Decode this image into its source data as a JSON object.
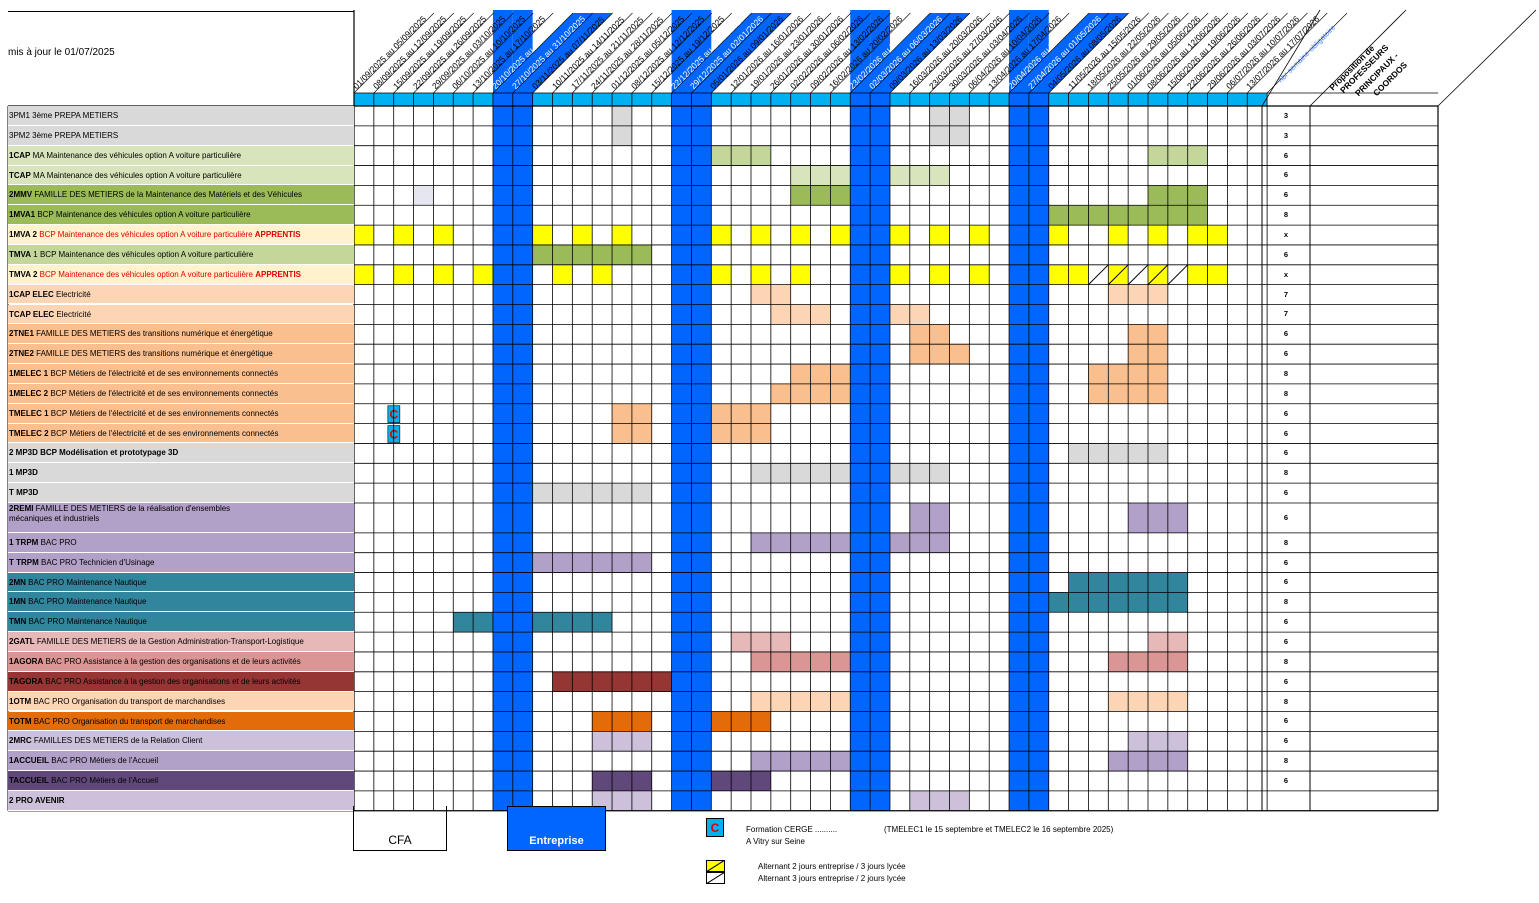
{
  "updated": "mis à jour le 01/07/2025",
  "headers": {
    "weeks_label": "nbr semaine obligatoire",
    "proposition": "Proposition de",
    "profs": "PROFESSEURS",
    "principaux": "PRINCIPAUX -",
    "coordos": "COORDOS"
  },
  "weeks": [
    {
      "label": "01/09/2025 au 05/09/2025",
      "hl": false
    },
    {
      "label": "08/09/2025 au 12/09/2025",
      "hl": false
    },
    {
      "label": "15/09/2025 au 19/09/2025",
      "hl": false
    },
    {
      "label": "22/09/2025 au 26/09/2025",
      "hl": false
    },
    {
      "label": "29/09/2025 au 03/10/2025",
      "hl": false
    },
    {
      "label": "06/10/2025 au 10/10/2025",
      "hl": false
    },
    {
      "label": "13/10/2025 au 17/10/2025",
      "hl": false
    },
    {
      "label": "20/10/2025 au 24/10/2025",
      "hl": true
    },
    {
      "label": "27/10/2025 au 31/10/2025",
      "hl": true
    },
    {
      "label": "03/11/2025 au 07/11/2025",
      "hl": false
    },
    {
      "label": "10/11/2025 au 14/11/2025",
      "hl": false
    },
    {
      "label": "17/11/2025 au 21/11/2025",
      "hl": false
    },
    {
      "label": "24/11/2025 au 28/11/2025",
      "hl": false
    },
    {
      "label": "01/12/2025 au 05/12/2025",
      "hl": false
    },
    {
      "label": "08/12/2025 au 12/12/2025",
      "hl": false
    },
    {
      "label": "15/12/2025 au 19/12/2025",
      "hl": false
    },
    {
      "label": "22/12/2025 au 26/12/2025",
      "hl": true
    },
    {
      "label": "29/12/2025 au 02/01/2026",
      "hl": true
    },
    {
      "label": "05/01/2026 au 09/01/2026",
      "hl": false
    },
    {
      "label": "12/01/2026 au 16/01/2026",
      "hl": false
    },
    {
      "label": "19/01/2026 au 23/01/2026",
      "hl": false
    },
    {
      "label": "26/01/2026 au 30/01/2026",
      "hl": false
    },
    {
      "label": "02/02/2026 au 06/02/2026",
      "hl": false
    },
    {
      "label": "09/02/2026 au 13/02/2026",
      "hl": false
    },
    {
      "label": "16/02/2026 au 20/02/2026",
      "hl": false
    },
    {
      "label": "23/02/2026 au 27/02/2026",
      "hl": true
    },
    {
      "label": "02/03/2026 au 06/03/2026",
      "hl": true
    },
    {
      "label": "09/03/2026 au 13/03/2026",
      "hl": false
    },
    {
      "label": "16/03/2026 au 20/03/2026",
      "hl": false
    },
    {
      "label": "23/03/2026 au 27/03/2026",
      "hl": false
    },
    {
      "label": "30/03/2026 au 03/04/2026",
      "hl": false
    },
    {
      "label": "06/04/2026 au 10/04/2026",
      "hl": false
    },
    {
      "label": "13/04/2026 au 17/04/2026",
      "hl": false
    },
    {
      "label": "20/04/2026 au 24/04/2026",
      "hl": true
    },
    {
      "label": "27/04/2026 au 01/05/2026",
      "hl": true
    },
    {
      "label": "04/05/2026 au 08/05/2026",
      "hl": false
    },
    {
      "label": "11/05/2026 au 15/05/2026",
      "hl": false
    },
    {
      "label": "18/05/2026 au 22/05/2026",
      "hl": false
    },
    {
      "label": "25/05/2026 au 29/05/2026",
      "hl": false
    },
    {
      "label": "01/06/2026 au 05/06/2026",
      "hl": false
    },
    {
      "label": "08/06/2026 au 12/06/2026",
      "hl": false
    },
    {
      "label": "15/06/2026 au 19/06/2026",
      "hl": false
    },
    {
      "label": "22/06/2026 au 26/06/2026",
      "hl": false
    },
    {
      "label": "29/06/2026 au 03/07/2026",
      "hl": false
    },
    {
      "label": "06/07/2026 au 10/07/2026",
      "hl": false
    },
    {
      "label": "13/07/2026 au 17/07/2026",
      "hl": false
    }
  ],
  "holiday_cols": [
    7,
    8,
    16,
    17,
    25,
    26,
    33,
    34
  ],
  "colors": {
    "holiday": "#0066ff",
    "header_strip": "#00b0f0",
    "yellow": "#ffff00",
    "cerge": "#00b0f0",
    "cerge_text": "#e00000"
  },
  "rows": [
    {
      "code": "3PM1",
      "text": " 3ème PREPA METIERS",
      "bg": "#d9d9d9",
      "count": "3",
      "codeBold": false,
      "fills": [
        [
          13,
          13,
          "#d9d9d9"
        ],
        [
          29,
          30,
          "#d9d9d9"
        ]
      ]
    },
    {
      "code": "3PM2",
      "text": " 3ème PREPA METIERS",
      "bg": "#d9d9d9",
      "count": "3",
      "codeBold": false,
      "fills": [
        [
          13,
          13,
          "#d9d9d9"
        ],
        [
          29,
          30,
          "#d9d9d9"
        ]
      ]
    },
    {
      "code": "1CAP",
      "text": " MA   Maintenance des véhicules option A voiture particulière",
      "bg": "#d8e4bc",
      "count": "6",
      "fills": [
        [
          18,
          20,
          "#c4d79b"
        ],
        [
          40,
          42,
          "#c4d79b"
        ]
      ]
    },
    {
      "code": "TCAP",
      "text": " MA   Maintenance des véhicules option A voiture particulière",
      "bg": "#d8e4bc",
      "count": "6",
      "fills": [
        [
          22,
          24,
          "#d8e4bc"
        ],
        [
          27,
          29,
          "#d8e4bc"
        ]
      ]
    },
    {
      "code": "2MMV",
      "text": " FAMILLE DES METIERS  de la Maintenance des Matériels et des Véhicules",
      "bg": "#9bbb59",
      "count": "6",
      "fills": [
        [
          3,
          3,
          "#e6e6f0"
        ],
        [
          22,
          24,
          "#9bbb59"
        ],
        [
          40,
          42,
          "#9bbb59"
        ]
      ]
    },
    {
      "code": "1MVA1",
      "text": "  BCP Maintenance des véhicules option A voiture particulière",
      "bg": "#9bbb59",
      "count": "8",
      "fills": [
        [
          35,
          42,
          "#9bbb59"
        ]
      ]
    },
    {
      "code": "1MVA 2",
      "text": "  BCP Maintenance des véhicules option A voiture particulière ",
      "red": "APPRENTIS",
      "bg": "#fff2cc",
      "redText": true,
      "count": "x",
      "fills": [
        [
          0,
          0,
          "#ffff00"
        ],
        [
          2,
          2,
          "#ffff00"
        ],
        [
          4,
          4,
          "#ffff00"
        ],
        [
          9,
          9,
          "#ffff00"
        ],
        [
          11,
          11,
          "#ffff00"
        ],
        [
          13,
          13,
          "#ffff00"
        ],
        [
          18,
          18,
          "#ffff00"
        ],
        [
          20,
          20,
          "#ffff00"
        ],
        [
          22,
          22,
          "#ffff00"
        ],
        [
          24,
          24,
          "#ffff00"
        ],
        [
          27,
          27,
          "#ffff00"
        ],
        [
          29,
          29,
          "#ffff00"
        ],
        [
          31,
          31,
          "#ffff00"
        ],
        [
          35,
          35,
          "#ffff00"
        ],
        [
          38,
          38,
          "#ffff00"
        ],
        [
          40,
          40,
          "#ffff00"
        ],
        [
          42,
          43,
          "#ffff00"
        ]
      ]
    },
    {
      "code": "TMVA",
      "text": " 1 BCP Maintenance des véhicules option A voiture particulière",
      "bg": "#c4d79b",
      "count": "6",
      "fills": [
        [
          9,
          14,
          "#9bbb59"
        ]
      ]
    },
    {
      "code": "TMVA 2",
      "text": " BCP Maintenance des véhicules option A voiture particulière ",
      "red": "APPRENTIS",
      "bg": "#fff2cc",
      "redText": true,
      "count": "x",
      "fills": [
        [
          0,
          0,
          "#ffff00"
        ],
        [
          2,
          2,
          "#ffff00"
        ],
        [
          4,
          4,
          "#ffff00"
        ],
        [
          6,
          6,
          "#ffff00"
        ],
        [
          10,
          10,
          "#ffff00"
        ],
        [
          12,
          12,
          "#ffff00"
        ],
        [
          18,
          18,
          "#ffff00"
        ],
        [
          20,
          20,
          "#ffff00"
        ],
        [
          22,
          22,
          "#ffff00"
        ],
        [
          27,
          27,
          "#ffff00"
        ],
        [
          29,
          29,
          "#ffff00"
        ],
        [
          31,
          31,
          "#ffff00"
        ],
        [
          35,
          36,
          "#ffff00"
        ],
        [
          42,
          43,
          "#ffff00"
        ]
      ],
      "hatch": [
        37,
        38,
        39,
        40,
        41
      ]
    },
    {
      "code": "1CAP ELEC",
      "text": " Electricité",
      "bg": "#fcd5b4",
      "count": "7",
      "fills": [
        [
          20,
          21,
          "#fcd5b4"
        ],
        [
          38,
          40,
          "#fcd5b4"
        ]
      ]
    },
    {
      "code": "TCAP ELEC",
      "text": " Electricité",
      "bg": "#fcd5b4",
      "count": "7",
      "fills": [
        [
          21,
          23,
          "#fcd5b4"
        ],
        [
          27,
          28,
          "#fcd5b4"
        ]
      ]
    },
    {
      "code": "2TNE1",
      "text": " FAMILLE DES METIERS des transitions numérique et énergétique",
      "bg": "#fabf8f",
      "count": "6",
      "fills": [
        [
          28,
          29,
          "#fabf8f"
        ],
        [
          39,
          40,
          "#fabf8f"
        ]
      ]
    },
    {
      "code": "2TNE2",
      "text": "  FAMILLE DES METIERS des transitions numérique et énergétique",
      "bg": "#fabf8f",
      "count": "6",
      "fills": [
        [
          28,
          30,
          "#fabf8f"
        ],
        [
          39,
          40,
          "#fabf8f"
        ]
      ]
    },
    {
      "code": "1MELEC 1",
      "text": "  BCP Métiers de l'électricité et de ses environnements connectés",
      "bg": "#fabf8f",
      "count": "8",
      "fills": [
        [
          22,
          24,
          "#fabf8f"
        ],
        [
          37,
          40,
          "#fabf8f"
        ]
      ]
    },
    {
      "code": "1MELEC 2",
      "text": "  BCP Métiers de l'électricité et de ses environnements connectés",
      "bg": "#fabf8f",
      "count": "8",
      "fills": [
        [
          21,
          24,
          "#fabf8f"
        ],
        [
          37,
          40,
          "#fabf8f"
        ]
      ]
    },
    {
      "code": "TMELEC 1",
      "text": "  BCP Métiers de l'électricité et de ses environnements connectés",
      "bg": "#fabf8f",
      "count": "6",
      "cerge": true,
      "fills": [
        [
          13,
          14,
          "#fabf8f"
        ],
        [
          18,
          20,
          "#fabf8f"
        ]
      ]
    },
    {
      "code": "TMELEC 2",
      "text": "  BCP Métiers de l'électricité et de ses environnements connectés",
      "bg": "#fabf8f",
      "count": "6",
      "cerge": true,
      "fills": [
        [
          13,
          14,
          "#fabf8f"
        ],
        [
          18,
          20,
          "#fabf8f"
        ]
      ]
    },
    {
      "code": "2 MP3D",
      "text": " BCP Modélisation et prototypage 3D",
      "bg": "#d9d9d9",
      "count": "6",
      "allBold": true,
      "fills": [
        [
          36,
          40,
          "#d9d9d9"
        ]
      ]
    },
    {
      "code": "1 MP3D",
      "text": "",
      "bg": "#d9d9d9",
      "count": "8",
      "fills": [
        [
          20,
          24,
          "#d9d9d9"
        ],
        [
          27,
          29,
          "#d9d9d9"
        ]
      ]
    },
    {
      "code": "T MP3D",
      "text": "",
      "bg": "#d9d9d9",
      "count": "6",
      "fills": [
        [
          9,
          14,
          "#d9d9d9"
        ]
      ]
    },
    {
      "code": "2REMI",
      "text": " FAMILLE DES METIERS de la réalisation d'ensembles",
      "text2": "mécaniques et industriels",
      "bg": "#b1a0c7",
      "count": "6",
      "fills": [
        [
          28,
          29,
          "#b1a0c7"
        ],
        [
          39,
          41,
          "#b1a0c7"
        ]
      ]
    },
    {
      "code": "1 TRPM",
      "text": "  BAC PRO",
      "bg": "#b1a0c7",
      "count": "8",
      "fills": [
        [
          20,
          24,
          "#b1a0c7"
        ],
        [
          27,
          29,
          "#b1a0c7"
        ]
      ]
    },
    {
      "code": "T TRPM",
      "text": " BAC PRO Technicien d'Usinage",
      "bg": "#b1a0c7",
      "count": "6",
      "fills": [
        [
          9,
          14,
          "#b1a0c7"
        ]
      ]
    },
    {
      "code": "2MN",
      "text": " BAC PRO Maintenance Nautique",
      "bg": "#31859c",
      "count": "6",
      "fills": [
        [
          36,
          41,
          "#31859c"
        ]
      ]
    },
    {
      "code": "1MN",
      "text": " BAC PRO Maintenance Nautique",
      "bg": "#31859c",
      "count": "8",
      "fills": [
        [
          35,
          41,
          "#31859c"
        ]
      ]
    },
    {
      "code": "TMN",
      "text": " BAC PRO Maintenance Nautique",
      "bg": "#31859c",
      "count": "6",
      "fills": [
        [
          5,
          6,
          "#31859c"
        ],
        [
          9,
          12,
          "#31859c"
        ]
      ]
    },
    {
      "code": "2GATL",
      "text": " FAMILLE DES METIERS de la  Gestion Administration-Transport-Logistique",
      "bg": "#e6b8b7",
      "count": "6",
      "fills": [
        [
          19,
          21,
          "#e6b8b7"
        ],
        [
          40,
          41,
          "#e6b8b7"
        ]
      ]
    },
    {
      "code": "1AGORA",
      "text": " BAC PRO Assistance à la gestion des organisations et de leurs activités",
      "bg": "#da9694",
      "count": "8",
      "fills": [
        [
          20,
          24,
          "#da9694"
        ],
        [
          38,
          41,
          "#da9694"
        ]
      ]
    },
    {
      "code": "TAGORA",
      "text": " BAC PRO  Assistance à la gestion des organisations et de leurs activités",
      "bg": "#963634",
      "count": "6",
      "fills": [
        [
          10,
          15,
          "#963634"
        ]
      ]
    },
    {
      "code": "1OTM",
      "text": " BAC PRO Organisation du transport de marchandises",
      "bg": "#fcd5b4",
      "count": "8",
      "fills": [
        [
          20,
          24,
          "#fcd5b4"
        ],
        [
          38,
          41,
          "#fcd5b4"
        ]
      ]
    },
    {
      "code": "TOTM",
      "text": " BAC PRO Organisation du transport de marchandises",
      "bg": "#e26b0a",
      "count": "6",
      "fills": [
        [
          12,
          14,
          "#e26b0a"
        ],
        [
          18,
          20,
          "#e26b0a"
        ]
      ]
    },
    {
      "code": "2MRC",
      "text": " FAMILLES DES METIERS de la Relation Client",
      "bg": "#ccc0da",
      "count": "6",
      "fills": [
        [
          12,
          14,
          "#ccc0da"
        ],
        [
          39,
          41,
          "#ccc0da"
        ]
      ]
    },
    {
      "code": "1ACCUEIL",
      "text": " BAC PRO Métiers de l'Accueil",
      "bg": "#b1a0c7",
      "count": "8",
      "fills": [
        [
          20,
          24,
          "#b1a0c7"
        ],
        [
          38,
          41,
          "#b1a0c7"
        ]
      ]
    },
    {
      "code": "TACCUEIL",
      "text": " BAC PRO Métiers de l'Accueil",
      "bg": "#60497a",
      "count": "6",
      "fills": [
        [
          12,
          14,
          "#60497a"
        ],
        [
          18,
          20,
          "#60497a"
        ]
      ]
    },
    {
      "code": "2 PRO AVENIR",
      "text": "",
      "bg": "#ccc0da",
      "count": "",
      "fills": [
        [
          12,
          14,
          "#ccc0da"
        ],
        [
          28,
          30,
          "#ccc0da"
        ]
      ]
    }
  ],
  "legend": {
    "cfa": "CFA",
    "entreprise": "Entreprise",
    "cerge_letter": "C",
    "cerge_line1": "Formation CERGE ..........",
    "cerge_line2": "A Vitry sur Seine",
    "cerge_dates": "(TMELEC1 le 15  septembre et TMELEC2 le 16  septembre 2025)",
    "alt1": "Alternant 2 jours entreprise / 3 jours lycée",
    "alt2": "Alternant 3 jours entreprise / 2 jours lycée"
  }
}
